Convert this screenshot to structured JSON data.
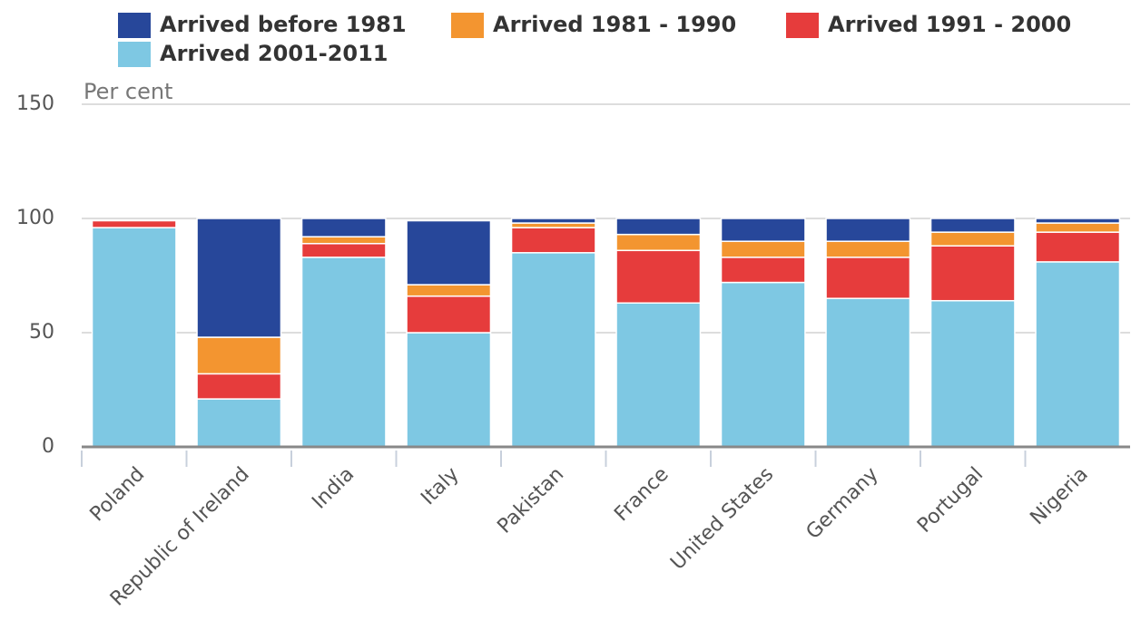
{
  "chart_data": {
    "type": "stacked_bar",
    "y_axis_label": "Per cent",
    "categories": [
      "Poland",
      "Republic of Ireland",
      "India",
      "Italy",
      "Pakistan",
      "France",
      "United States",
      "Germany",
      "Portugal",
      "Nigeria"
    ],
    "series": [
      {
        "name": "Arrived 2001-2011",
        "color": "#7ec8e3",
        "values": [
          96,
          21,
          83,
          50,
          85,
          63,
          72,
          65,
          64,
          81
        ]
      },
      {
        "name": "Arrived 1991 - 2000",
        "color": "#e63c3c",
        "values": [
          3,
          11,
          6,
          16,
          11,
          23,
          11,
          18,
          24,
          13
        ]
      },
      {
        "name": "Arrived 1981 - 1990",
        "color": "#f39530",
        "values": [
          0,
          16,
          3,
          5,
          2,
          7,
          7,
          7,
          6,
          4
        ]
      },
      {
        "name": "Arrived before 1981",
        "color": "#27479a",
        "values": [
          0,
          52,
          8,
          28,
          2,
          7,
          10,
          10,
          6,
          2
        ]
      }
    ],
    "ylim": [
      0,
      150
    ],
    "yticks": [
      0,
      50,
      100,
      150
    ],
    "grid": true
  }
}
